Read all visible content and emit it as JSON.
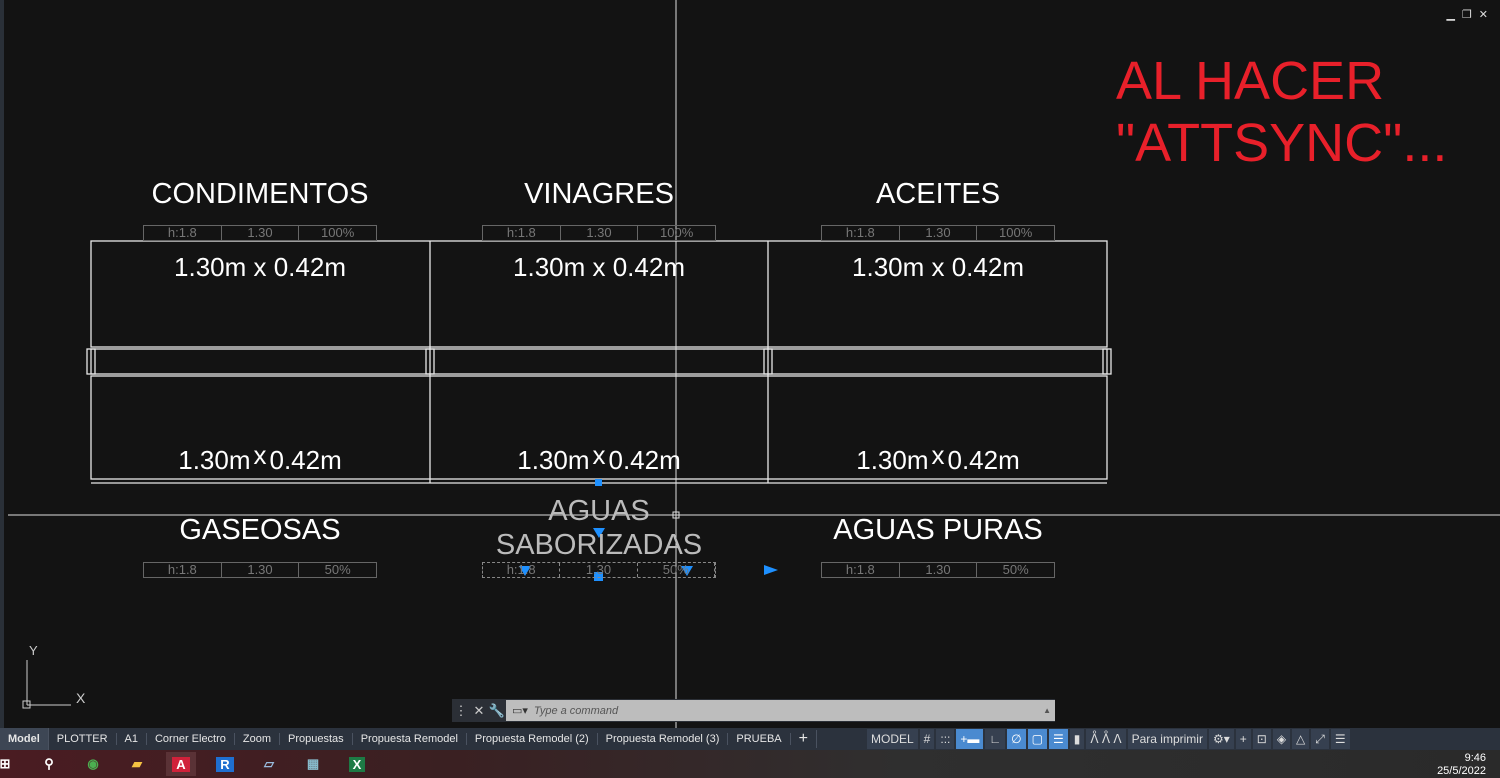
{
  "drawing": {
    "top_labels": [
      "CONDIMENTOS",
      "VINAGRES",
      "ACEITES"
    ],
    "bottom_labels": [
      "GASEOSAS",
      "AGUAS SABORIZADAS",
      "AGUAS PURAS"
    ],
    "bottom_label_line1": "AGUAS",
    "bottom_label_line2": "SABORIZADAS",
    "dimension_text": "1.30m x 0.42m",
    "dim_a": "1.30m",
    "dim_x": "x",
    "dim_b": "0.42m",
    "top_tables": [
      [
        "h:1.8",
        "1.30",
        "100%"
      ],
      [
        "h:1.8",
        "1.30",
        "100%"
      ],
      [
        "h:1.8",
        "1.30",
        "100%"
      ]
    ],
    "bottom_tables": [
      [
        "h:1.8",
        "1.30",
        "50%"
      ],
      [
        "h:1.8",
        "1.30",
        "50%"
      ],
      [
        "h:1.8",
        "1.30",
        "50%"
      ]
    ],
    "annotation": "AL HACER \"ATTSYNC\"...",
    "annotation_line1": "AL HACER",
    "annotation_line2": "\"ATTSYNC\"...",
    "ucs_x": "X",
    "ucs_y": "Y",
    "grip_color": "#1e90ff",
    "annotation_color": "#e8202a"
  },
  "command": {
    "placeholder": "Type a command",
    "close_icon": "close-icon",
    "settings_icon": "wrench-icon"
  },
  "layout_tabs": [
    "Model",
    "PLOTTER",
    "A1",
    "Corner Electro",
    "Zoom",
    "Propuestas",
    "Propuesta Remodel",
    "Propuesta Remodel (2)",
    "Propuesta Remodel (3)",
    "PRUEBA"
  ],
  "add_tab": "+",
  "status": {
    "model": "MODEL",
    "grid": "#",
    "snap": ":::",
    "annotation_scale": "Para imprimir"
  },
  "taskbar": {
    "apps": [
      "windows-start",
      "search",
      "chrome",
      "file-explorer",
      "autocad",
      "revit",
      "notes",
      "calculator",
      "excel"
    ],
    "time": "9:46",
    "date": "25/5/2022"
  }
}
